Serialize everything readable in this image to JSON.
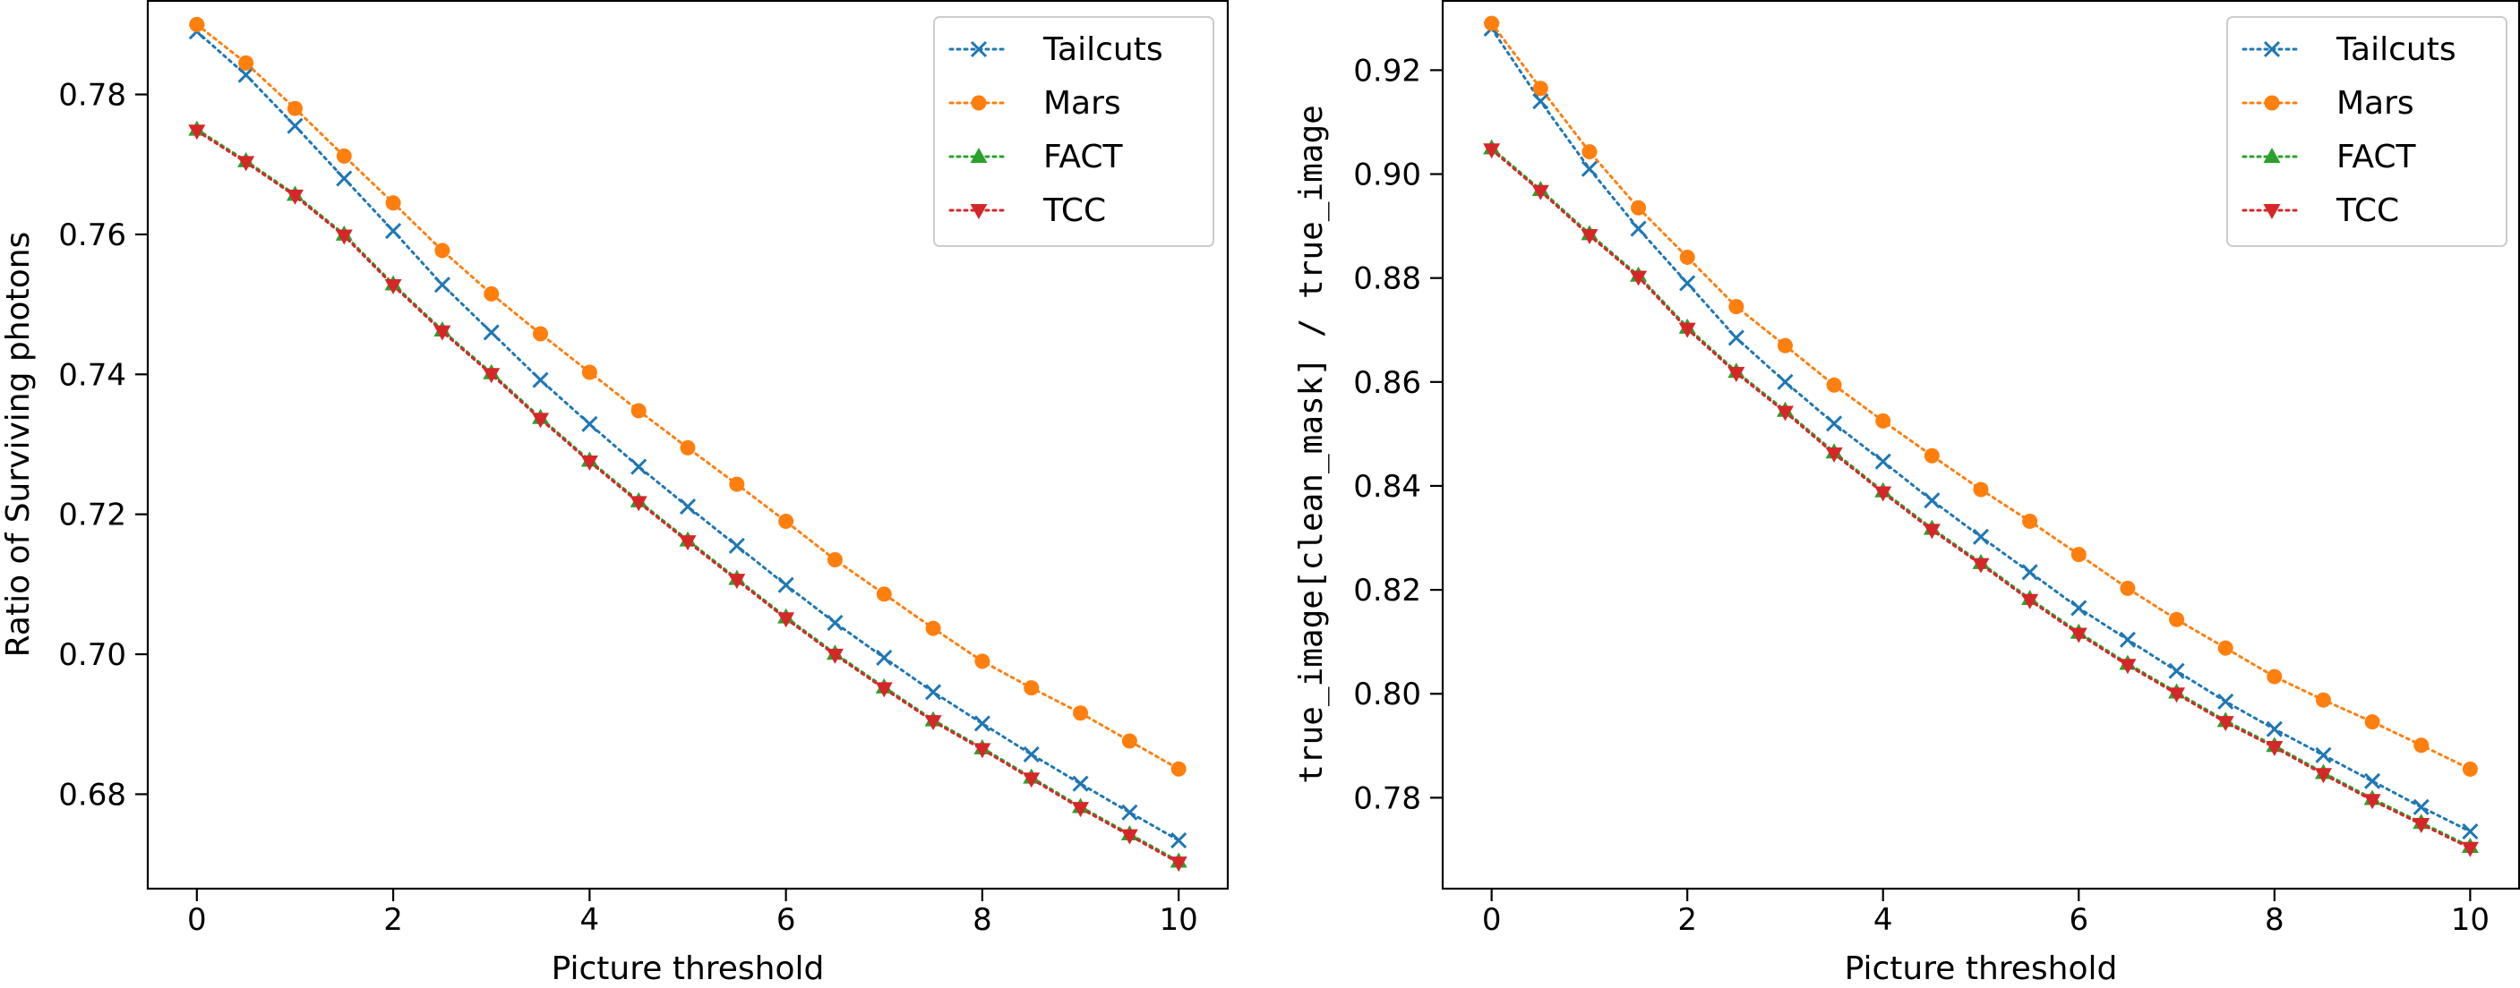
{
  "colors": {
    "Tailcuts": "#1f77b4",
    "Mars": "#ff7f0e",
    "FACT": "#2ca02c",
    "TCC": "#d62728"
  },
  "markers": {
    "Tailcuts": "x",
    "Mars": "circle",
    "FACT": "triangle-up",
    "TCC": "triangle-down"
  },
  "chart_data": [
    {
      "type": "line",
      "xlabel": "Picture threshold",
      "ylabel": "Ratio of Surviving photons",
      "xlim": [
        -0.5,
        10.5
      ],
      "ylim": [
        0.6665,
        0.7935
      ],
      "xticks": [
        0,
        2,
        4,
        6,
        8,
        10
      ],
      "xtick_labels": [
        "0",
        "2",
        "4",
        "6",
        "8",
        "10"
      ],
      "yticks": [
        0.68,
        0.7,
        0.72,
        0.74,
        0.76,
        0.78
      ],
      "ytick_labels": [
        "0.68",
        "0.70",
        "0.72",
        "0.74",
        "0.76",
        "0.78"
      ],
      "grid": false,
      "legend_position": "upper right",
      "x": [
        0,
        0.5,
        1,
        1.5,
        2,
        2.5,
        3,
        3.5,
        4,
        4.5,
        5,
        5.5,
        6,
        6.5,
        7,
        7.5,
        8,
        8.5,
        9,
        9.5,
        10
      ],
      "series": [
        {
          "name": "Tailcuts",
          "values": [
            0.789,
            0.7828,
            0.7755,
            0.768,
            0.7605,
            0.7528,
            0.746,
            0.7392,
            0.7329,
            0.7268,
            0.7211,
            0.7155,
            0.7099,
            0.7045,
            0.6995,
            0.6946,
            0.6901,
            0.6857,
            0.6815,
            0.6774,
            0.6734
          ]
        },
        {
          "name": "Mars",
          "values": [
            0.79,
            0.7845,
            0.778,
            0.7712,
            0.7645,
            0.7577,
            0.7515,
            0.7458,
            0.7403,
            0.7348,
            0.7295,
            0.7243,
            0.719,
            0.7135,
            0.7086,
            0.7037,
            0.699,
            0.6952,
            0.6916,
            0.6876,
            0.6836
          ]
        },
        {
          "name": "FACT",
          "values": [
            0.775,
            0.7705,
            0.7657,
            0.76,
            0.7529,
            0.7463,
            0.7402,
            0.7338,
            0.7277,
            0.7219,
            0.7163,
            0.7108,
            0.7053,
            0.7001,
            0.6953,
            0.6906,
            0.6866,
            0.6824,
            0.6782,
            0.6743,
            0.6704
          ]
        },
        {
          "name": "TCC",
          "values": [
            0.7748,
            0.7703,
            0.7655,
            0.7598,
            0.7527,
            0.7461,
            0.74,
            0.7336,
            0.7275,
            0.7217,
            0.7161,
            0.7106,
            0.7051,
            0.6999,
            0.6951,
            0.6904,
            0.6864,
            0.6822,
            0.678,
            0.6741,
            0.6702
          ]
        }
      ]
    },
    {
      "type": "line",
      "xlabel": "Picture threshold",
      "ylabel": "true_image[clean_mask] / true_image",
      "xlim": [
        -0.5,
        10.5
      ],
      "ylim": [
        0.7625,
        0.9335
      ],
      "xticks": [
        0,
        2,
        4,
        6,
        8,
        10
      ],
      "xtick_labels": [
        "0",
        "2",
        "4",
        "6",
        "8",
        "10"
      ],
      "yticks": [
        0.78,
        0.8,
        0.82,
        0.84,
        0.86,
        0.88,
        0.9,
        0.92
      ],
      "ytick_labels": [
        "0.78",
        "0.80",
        "0.82",
        "0.84",
        "0.86",
        "0.88",
        "0.90",
        "0.92"
      ],
      "grid": false,
      "legend_position": "upper right",
      "x": [
        0,
        0.5,
        1,
        1.5,
        2,
        2.5,
        3,
        3.5,
        4,
        4.5,
        5,
        5.5,
        6,
        6.5,
        7,
        7.5,
        8,
        8.5,
        9,
        9.5,
        10
      ],
      "series": [
        {
          "name": "Tailcuts",
          "values": [
            0.928,
            0.914,
            0.901,
            0.8895,
            0.879,
            0.8685,
            0.86,
            0.852,
            0.8447,
            0.8372,
            0.8302,
            0.8234,
            0.8165,
            0.8104,
            0.8044,
            0.7985,
            0.7932,
            0.7882,
            0.7832,
            0.7782,
            0.7735
          ]
        },
        {
          "name": "Mars",
          "values": [
            0.929,
            0.9165,
            0.9043,
            0.8935,
            0.884,
            0.8745,
            0.867,
            0.8594,
            0.8525,
            0.8458,
            0.8393,
            0.8332,
            0.8268,
            0.8203,
            0.8143,
            0.8088,
            0.8033,
            0.7988,
            0.7946,
            0.7901,
            0.7855
          ]
        },
        {
          "name": "FACT",
          "values": [
            0.905,
            0.897,
            0.8885,
            0.8805,
            0.8705,
            0.862,
            0.8545,
            0.8465,
            0.839,
            0.8318,
            0.8252,
            0.8183,
            0.8118,
            0.8058,
            0.8003,
            0.7948,
            0.79,
            0.7848,
            0.7798,
            0.7752,
            0.7706
          ]
        },
        {
          "name": "TCC",
          "values": [
            0.9047,
            0.8967,
            0.8882,
            0.8802,
            0.8702,
            0.8617,
            0.8542,
            0.8462,
            0.8387,
            0.8315,
            0.8249,
            0.818,
            0.8115,
            0.8055,
            0.8,
            0.7945,
            0.7897,
            0.7845,
            0.7795,
            0.7749,
            0.7703
          ]
        }
      ]
    }
  ]
}
